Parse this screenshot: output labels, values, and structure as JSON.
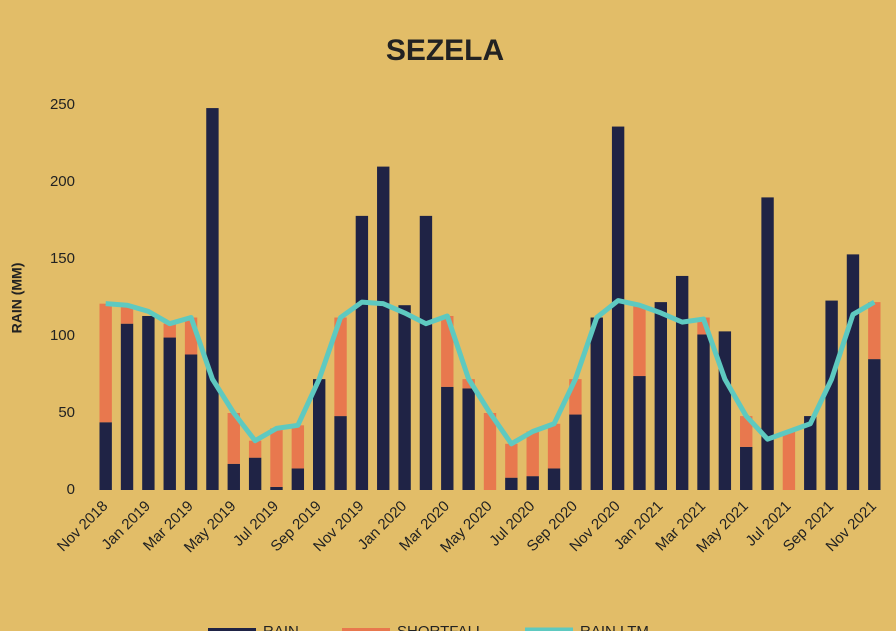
{
  "chart_data": {
    "type": "bar",
    "stacked": true,
    "title": "SEZELA",
    "y_label": "RAIN (MM)",
    "categories": [
      "Nov 2018",
      null,
      "Jan 2019",
      null,
      "Mar 2019",
      null,
      "May 2019",
      null,
      "Jul 2019",
      null,
      "Sep 2019",
      null,
      "Nov 2019",
      null,
      "Jan 2020",
      null,
      "Mar 2020",
      null,
      "May 2020",
      null,
      "Jul 2020",
      null,
      "Sep 2020",
      null,
      "Nov 2020",
      null,
      "Jan 2021",
      null,
      "Mar 2021",
      null,
      "May 2021",
      null,
      "Jul 2021",
      null,
      "Sep 2021",
      null,
      "Nov 2021"
    ],
    "series": [
      {
        "name": "RAIN",
        "type": "bar",
        "color": "#1f2345",
        "values": [
          44,
          108,
          113,
          99,
          88,
          248,
          17,
          21,
          2,
          14,
          72,
          48,
          178,
          210,
          120,
          178,
          67,
          66,
          0,
          8,
          9,
          14,
          49,
          112,
          236,
          74,
          122,
          139,
          101,
          103,
          28,
          190,
          0,
          48,
          123,
          153,
          85
        ]
      },
      {
        "name": "SHORTFALL",
        "type": "bar",
        "color": "#e8784e",
        "values": [
          77,
          12,
          0,
          9,
          24,
          0,
          33,
          11,
          38,
          28,
          0,
          64,
          0,
          0,
          0,
          0,
          46,
          6,
          50,
          22,
          29,
          29,
          23,
          0,
          0,
          46,
          0,
          0,
          11,
          0,
          20,
          0,
          38,
          0,
          0,
          0,
          37
        ]
      },
      {
        "name": "RAIN LTM",
        "type": "line",
        "color": "#5ec9c0",
        "values": [
          121,
          120,
          116,
          108,
          112,
          72,
          50,
          32,
          40,
          42,
          72,
          112,
          122,
          121,
          115,
          108,
          113,
          72,
          50,
          30,
          38,
          43,
          72,
          112,
          123,
          120,
          115,
          109,
          111,
          72,
          48,
          33,
          38,
          43,
          72,
          114,
          122
        ]
      }
    ],
    "ylim": [
      0,
      250
    ],
    "yticks": [
      0,
      50,
      100,
      150,
      200,
      250
    ],
    "grid": false,
    "legend": "bottom"
  }
}
